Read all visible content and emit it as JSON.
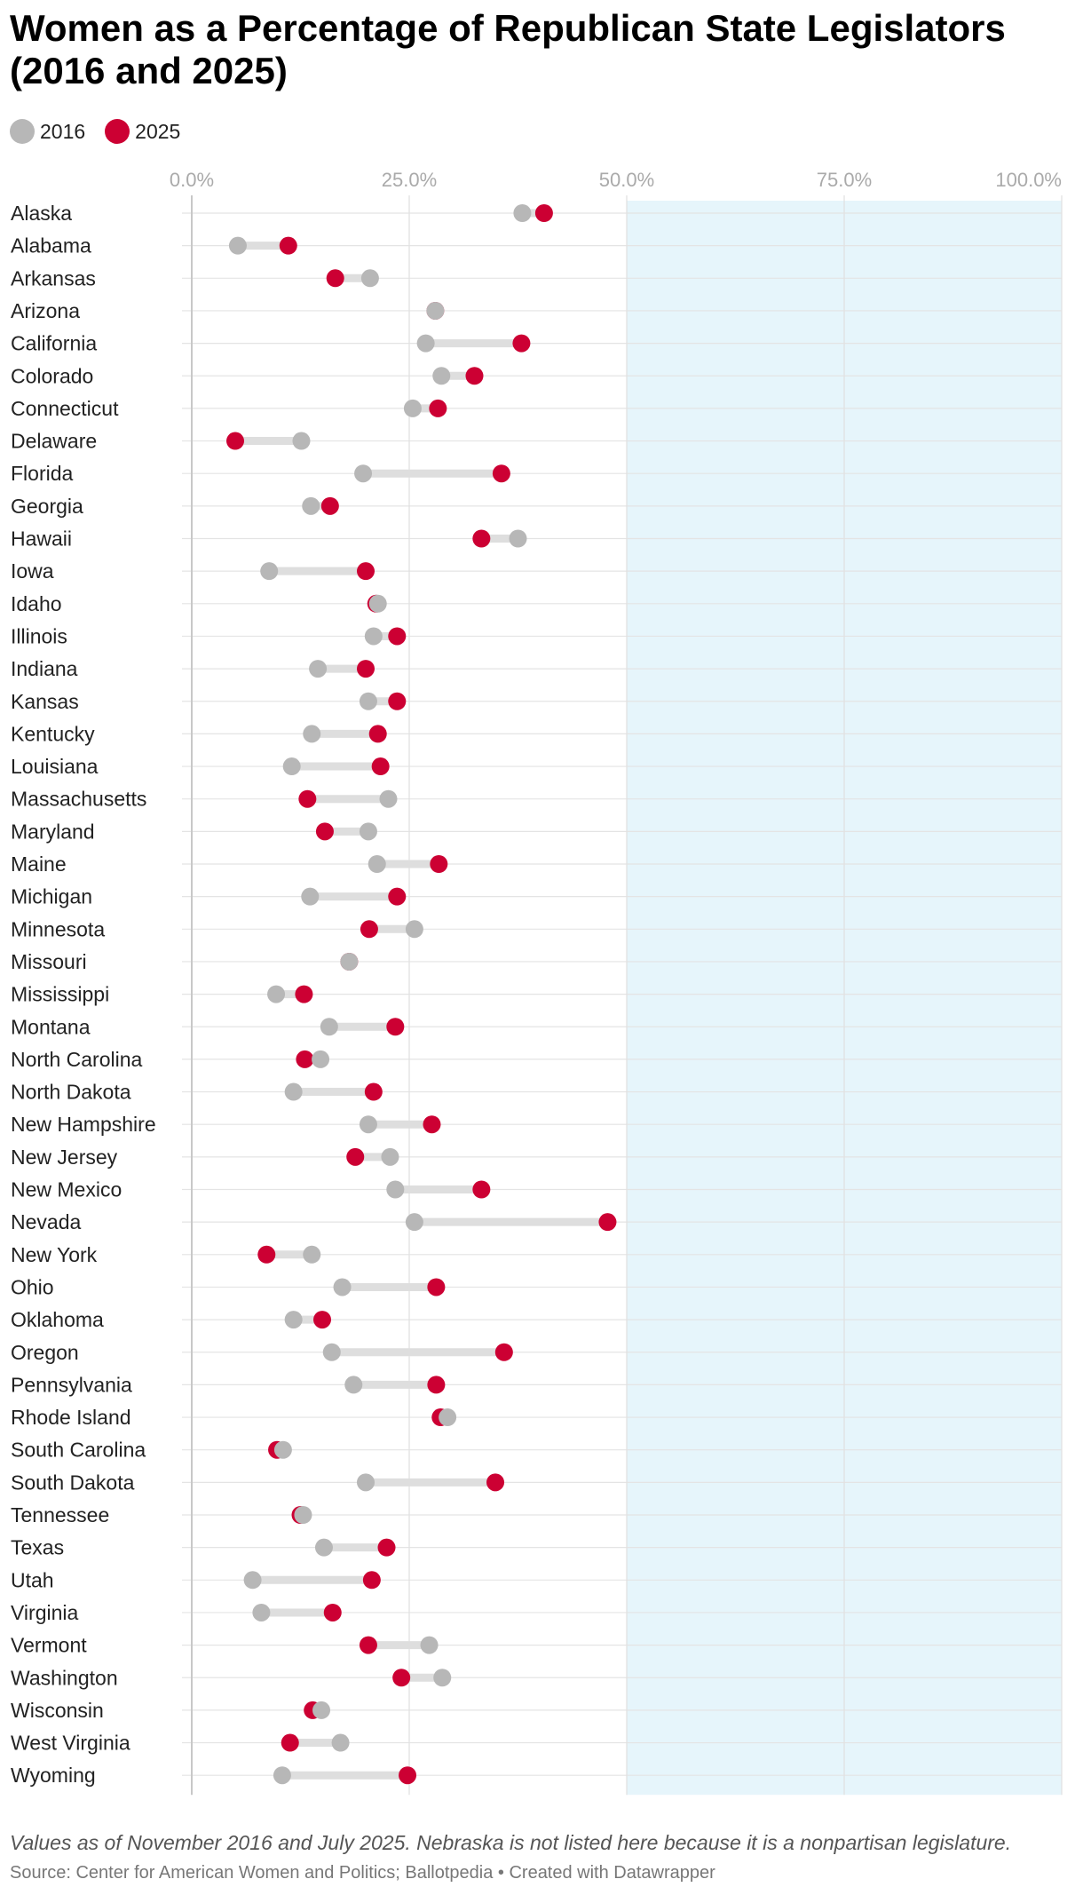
{
  "title": "Women as a Percentage of Republican State Legislators (2016 and 2025)",
  "legend": [
    {
      "label": "2016",
      "color": "#b7b7b7"
    },
    {
      "label": "2025",
      "color": "#cc0033"
    }
  ],
  "note": "Values as of November 2016 and July 2025. Nebraska is not listed here because it is a nonpartisan legislature.",
  "source": "Source: Center for American Women and Politics; Ballotpedia • Created with Datawrapper",
  "colors": {
    "y2016": "#b7b7b7",
    "y2025": "#cc0033",
    "connector": "#dedede",
    "highlight": "#e6f5fb",
    "grid": "#e4e4e4"
  },
  "chart_data": {
    "type": "dot-range",
    "title": "Women as a Percentage of Republican State Legislators (2016 and 2025)",
    "x_ticks": [
      "0.0%",
      "25.0%",
      "50.0%",
      "75.0%",
      "100.0%"
    ],
    "xlim": [
      0,
      100
    ],
    "highlight_range": [
      50,
      100
    ],
    "series": [
      {
        "name": "2016"
      },
      {
        "name": "2025"
      }
    ],
    "rows": [
      {
        "state": "Alaska",
        "y2016": 38.0,
        "y2025": 40.5
      },
      {
        "state": "Alabama",
        "y2016": 5.3,
        "y2025": 11.1
      },
      {
        "state": "Arkansas",
        "y2016": 20.5,
        "y2025": 16.5
      },
      {
        "state": "Arizona",
        "y2016": 28.0,
        "y2025": 28.0
      },
      {
        "state": "California",
        "y2016": 26.9,
        "y2025": 37.9
      },
      {
        "state": "Colorado",
        "y2016": 28.7,
        "y2025": 32.5
      },
      {
        "state": "Connecticut",
        "y2016": 25.4,
        "y2025": 28.3
      },
      {
        "state": "Delaware",
        "y2016": 12.6,
        "y2025": 5.0
      },
      {
        "state": "Florida",
        "y2016": 19.7,
        "y2025": 35.6
      },
      {
        "state": "Georgia",
        "y2016": 13.7,
        "y2025": 15.9
      },
      {
        "state": "Hawaii",
        "y2016": 37.5,
        "y2025": 33.3
      },
      {
        "state": "Iowa",
        "y2016": 8.9,
        "y2025": 20.0
      },
      {
        "state": "Idaho",
        "y2016": 21.4,
        "y2025": 21.2
      },
      {
        "state": "Illinois",
        "y2016": 20.9,
        "y2025": 23.6
      },
      {
        "state": "Indiana",
        "y2016": 14.5,
        "y2025": 20.0
      },
      {
        "state": "Kansas",
        "y2016": 20.3,
        "y2025": 23.6
      },
      {
        "state": "Kentucky",
        "y2016": 13.8,
        "y2025": 21.4
      },
      {
        "state": "Louisiana",
        "y2016": 11.5,
        "y2025": 21.7
      },
      {
        "state": "Massachusetts",
        "y2016": 22.6,
        "y2025": 13.3
      },
      {
        "state": "Maryland",
        "y2016": 20.3,
        "y2025": 15.3
      },
      {
        "state": "Maine",
        "y2016": 21.3,
        "y2025": 28.4
      },
      {
        "state": "Michigan",
        "y2016": 13.6,
        "y2025": 23.6
      },
      {
        "state": "Minnesota",
        "y2016": 25.6,
        "y2025": 20.4
      },
      {
        "state": "Missouri",
        "y2016": 18.1,
        "y2025": 18.1
      },
      {
        "state": "Mississippi",
        "y2016": 9.7,
        "y2025": 12.9
      },
      {
        "state": "Montana",
        "y2016": 15.8,
        "y2025": 23.4
      },
      {
        "state": "North Carolina",
        "y2016": 14.8,
        "y2025": 13.0
      },
      {
        "state": "North Dakota",
        "y2016": 11.7,
        "y2025": 20.9
      },
      {
        "state": "New Hampshire",
        "y2016": 20.3,
        "y2025": 27.6
      },
      {
        "state": "New Jersey",
        "y2016": 22.8,
        "y2025": 18.8
      },
      {
        "state": "New Mexico",
        "y2016": 23.4,
        "y2025": 33.3
      },
      {
        "state": "Nevada",
        "y2016": 25.6,
        "y2025": 47.8
      },
      {
        "state": "New York",
        "y2016": 13.8,
        "y2025": 8.6
      },
      {
        "state": "Ohio",
        "y2016": 17.3,
        "y2025": 28.1
      },
      {
        "state": "Oklahoma",
        "y2016": 11.7,
        "y2025": 15.0
      },
      {
        "state": "Oregon",
        "y2016": 16.1,
        "y2025": 35.9
      },
      {
        "state": "Pennsylvania",
        "y2016": 18.6,
        "y2025": 28.1
      },
      {
        "state": "Rhode Island",
        "y2016": 29.4,
        "y2025": 28.6
      },
      {
        "state": "South Carolina",
        "y2016": 10.5,
        "y2025": 9.8
      },
      {
        "state": "South Dakota",
        "y2016": 20.0,
        "y2025": 34.9
      },
      {
        "state": "Tennessee",
        "y2016": 12.8,
        "y2025": 12.5
      },
      {
        "state": "Texas",
        "y2016": 15.2,
        "y2025": 22.4
      },
      {
        "state": "Utah",
        "y2016": 7.0,
        "y2025": 20.7
      },
      {
        "state": "Virginia",
        "y2016": 8.0,
        "y2025": 16.2
      },
      {
        "state": "Vermont",
        "y2016": 27.3,
        "y2025": 20.3
      },
      {
        "state": "Washington",
        "y2016": 28.8,
        "y2025": 24.1
      },
      {
        "state": "Wisconsin",
        "y2016": 14.9,
        "y2025": 13.9
      },
      {
        "state": "West Virginia",
        "y2016": 17.1,
        "y2025": 11.3
      },
      {
        "state": "Wyoming",
        "y2016": 10.4,
        "y2025": 24.8
      }
    ]
  }
}
